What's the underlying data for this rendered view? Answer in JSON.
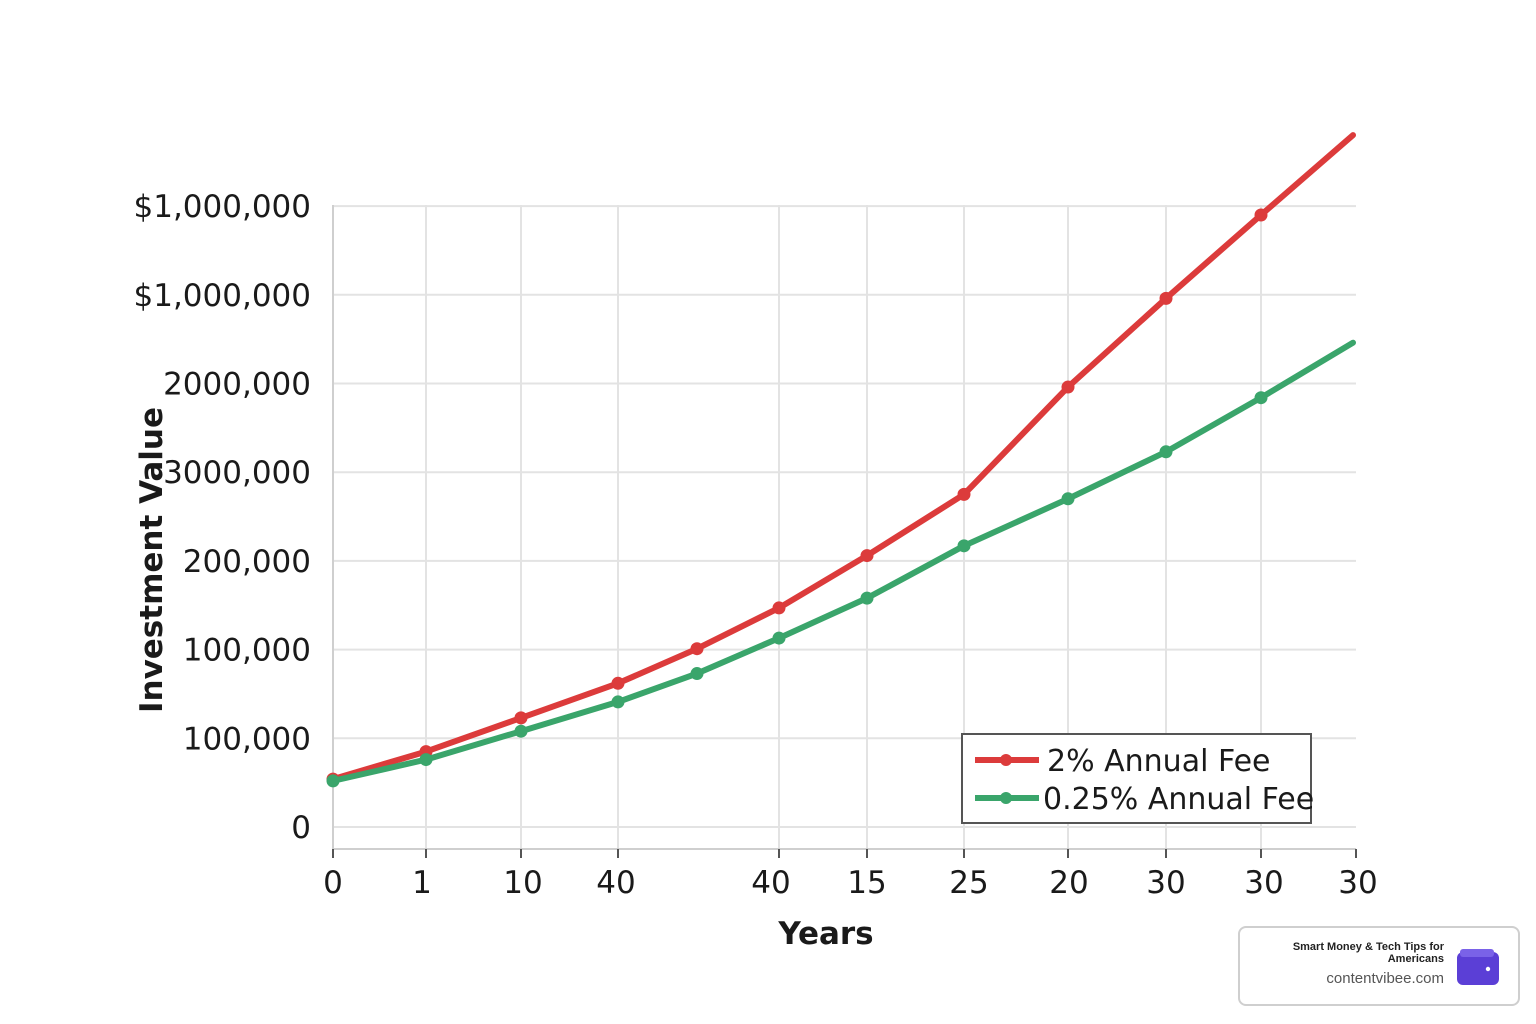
{
  "chart_data": {
    "type": "line",
    "xlabel": "Years",
    "ylabel": "Investment Value",
    "x_tick_labels": [
      "0",
      "1",
      "10",
      "40",
      "",
      "40",
      "15",
      "25",
      "20",
      "30",
      "30",
      "30"
    ],
    "y_tick_labels": [
      "0",
      "100,000",
      "100,000",
      "200,000",
      "3000,000",
      "2000,000",
      "$1,000,000",
      "$1,000,000"
    ],
    "y_tick_positions": [
      0,
      1,
      2,
      3,
      4,
      5,
      6,
      7
    ],
    "ylim": [
      0,
      7
    ],
    "grid": true,
    "legend_position": "bottom-right",
    "series": [
      {
        "name": "2% Annual Fee",
        "color": "#dc3b3b",
        "points": [
          [
            0,
            0.54
          ],
          [
            1,
            0.85
          ],
          [
            2,
            1.23
          ],
          [
            3,
            1.62
          ],
          [
            4,
            2.01
          ],
          [
            5,
            2.47
          ],
          [
            6,
            3.06
          ],
          [
            7,
            3.75
          ],
          [
            8,
            4.96
          ],
          [
            9,
            5.96
          ],
          [
            10,
            6.9
          ],
          [
            11,
            7.8
          ]
        ],
        "markers": [
          true,
          true,
          true,
          true,
          true,
          true,
          true,
          true,
          true,
          true,
          true,
          false
        ]
      },
      {
        "name": "0.25% Annual Fee",
        "color": "#3aa56b",
        "points": [
          [
            0,
            0.52
          ],
          [
            1,
            0.76
          ],
          [
            2,
            1.08
          ],
          [
            3,
            1.41
          ],
          [
            4,
            1.73
          ],
          [
            5,
            2.13
          ],
          [
            6,
            2.58
          ],
          [
            7,
            3.17
          ],
          [
            8,
            3.7
          ],
          [
            9,
            4.23
          ],
          [
            10,
            4.84
          ],
          [
            11,
            5.46
          ]
        ],
        "markers": [
          true,
          true,
          true,
          true,
          true,
          true,
          true,
          true,
          true,
          true,
          true,
          false
        ]
      }
    ]
  },
  "brand": {
    "tagline": "Smart Money & Tech Tips for Americans",
    "url": "contentvibee.com",
    "icon": "wallet-icon",
    "icon_color": "#5b3fd6"
  }
}
